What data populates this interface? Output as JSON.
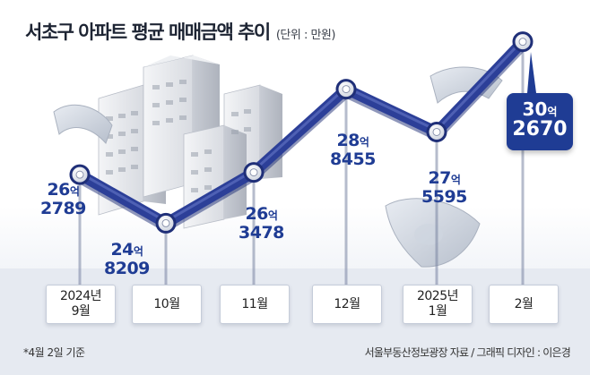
{
  "title": "서초구 아파트 평균 매매금액 추이",
  "unit": "(단위 : 만원)",
  "footnote": "*4월 2일 기준",
  "source": "서울부동산정보광장 자료 / 그래픽 디자인 : 이은경",
  "colors": {
    "line": "#2c3f98",
    "line_dark": "#1f2f78",
    "label": "#1f3c94",
    "callout_bg": "#1f3c94"
  },
  "chart_data": {
    "type": "line",
    "title": "서초구 아파트 평균 매매금액 추이",
    "unit": "(단위 : 만원)",
    "categories": [
      "2024년\n9월",
      "10월",
      "11월",
      "12월",
      "2025년\n1월",
      "2월"
    ],
    "values": [
      262789,
      248209,
      263478,
      288455,
      275595,
      302670
    ],
    "value_labels": [
      {
        "eok": "26",
        "eok_unit": "억",
        "man": "2789"
      },
      {
        "eok": "24",
        "eok_unit": "억",
        "man": "8209"
      },
      {
        "eok": "26",
        "eok_unit": "억",
        "man": "3478"
      },
      {
        "eok": "28",
        "eok_unit": "억",
        "man": "8455"
      },
      {
        "eok": "27",
        "eok_unit": "억",
        "man": "5595"
      },
      {
        "eok": "30",
        "eok_unit": "억",
        "man": "2670"
      }
    ],
    "highlight_index": 5,
    "grid": false
  }
}
